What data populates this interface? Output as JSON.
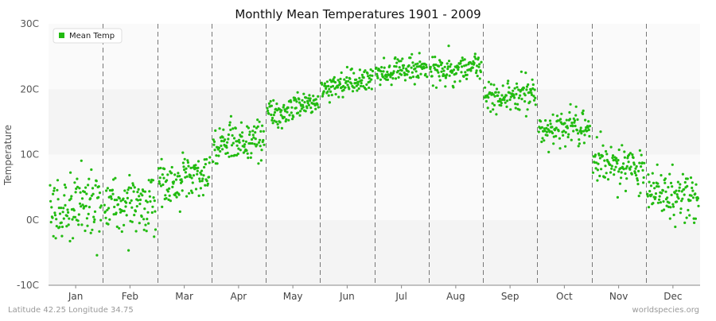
{
  "chart_data": {
    "type": "scatter",
    "title": "Monthly Mean Temperatures 1901 - 2009",
    "ylabel": "Temperature",
    "xlabel": "",
    "ylim": [
      -10,
      30
    ],
    "y_ticks": [
      {
        "value": -10,
        "label": "-10C"
      },
      {
        "value": 0,
        "label": "0C"
      },
      {
        "value": 10,
        "label": "10C"
      },
      {
        "value": 20,
        "label": "20C"
      },
      {
        "value": 30,
        "label": "30C"
      }
    ],
    "categories": [
      "Jan",
      "Feb",
      "Mar",
      "Apr",
      "May",
      "Jun",
      "Jul",
      "Aug",
      "Sep",
      "Oct",
      "Nov",
      "Dec"
    ],
    "years": [
      1901,
      2009
    ],
    "legend": {
      "position": "top-left"
    },
    "series": [
      {
        "name": "Mean Temp",
        "color": "#22bb11",
        "monthly_mean": [
          1.5,
          2.5,
          6.0,
          12.0,
          17.0,
          21.0,
          23.0,
          23.0,
          19.0,
          14.0,
          8.5,
          4.0
        ],
        "monthly_spread": [
          2.6,
          2.4,
          1.9,
          1.4,
          1.1,
          1.0,
          1.0,
          1.1,
          1.1,
          1.3,
          1.7,
          1.9
        ],
        "monthly_trend": [
          0.5,
          1.0,
          2.0,
          1.5,
          1.5,
          1.5,
          1.5,
          0.5,
          1.0,
          0.5,
          -1.0,
          -1.0
        ]
      }
    ],
    "background_bands": true,
    "grid": {
      "month_separators": "dashed"
    }
  },
  "footer": {
    "left": "Latitude 42.25 Longitude 34.75",
    "right": "worldspecies.org"
  }
}
